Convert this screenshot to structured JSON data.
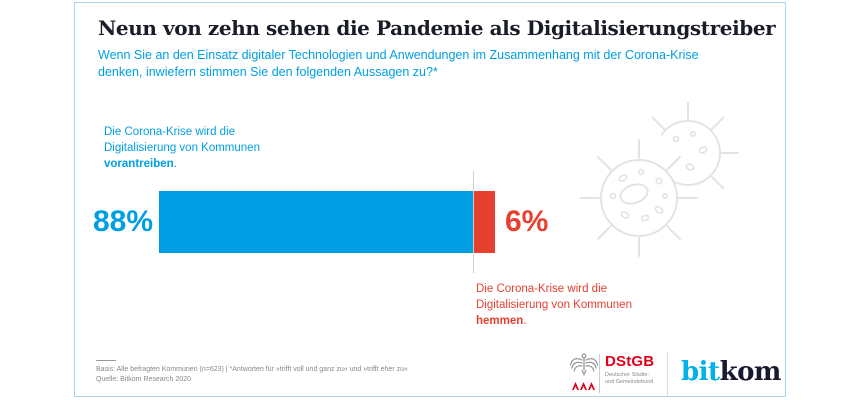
{
  "header": {
    "title": "Neun von zehn sehen die Pandemie als Digitalisierungstreiber",
    "subtitle_line1": "Wenn Sie an den Einsatz digitaler Technologien und Anwendungen im Zusammenhang mit der Corona-Krise",
    "subtitle_line2": "denken, inwiefern stimmen Sie den folgenden Aussagen zu?*"
  },
  "chart_data": {
    "type": "bar",
    "orientation": "horizontal-stacked",
    "title": "Neun von zehn sehen die Pandemie als Digitalisierungstreiber",
    "question": "Wenn Sie an den Einsatz digitaler Technologien und Anwendungen im Zusammenhang mit der Corona-Krise denken, inwiefern stimmen Sie den folgenden Aussagen zu?*",
    "unit": "%",
    "categories": [
      "Die Corona-Krise wird die Digitalisierung von Kommunen vorantreiben.",
      "Die Corona-Krise wird die Digitalisierung von Kommunen hemmen."
    ],
    "series": [
      {
        "name": "vorantreiben",
        "value": 88,
        "display": "88%",
        "color": "#009fe3"
      },
      {
        "name": "hemmen",
        "value": 6,
        "display": "6%",
        "color": "#e8402f"
      }
    ],
    "basis": "Alle befragten Kommunen (n=623)",
    "source": "Bitkom Research 2020",
    "legend_position": "none",
    "grid": false
  },
  "labels": {
    "positive": {
      "line1": "Die Corona-Krise wird die",
      "line2": "Digitalisierung von Kommunen",
      "bold": "vorantreiben",
      "suffix": "."
    },
    "negative": {
      "line1": "Die Corona-Krise wird die",
      "line2": "Digitalisierung von Kommunen",
      "bold": "hemmen",
      "suffix": "."
    }
  },
  "footer": {
    "line1": "Basis: Alle befragten Kommunen (n=623) | *Antworten für »trifft voll und ganz zu« und »trifft eher zu«",
    "line2": "Quelle: Bitkom Research 2020"
  },
  "logos": {
    "dstgb": {
      "name": "DStGB",
      "subline1": "Deutscher Städte-",
      "subline2": "und Gemeindebund"
    },
    "bitkom": {
      "part1": "bit",
      "part2": "kom"
    }
  },
  "colors": {
    "accent_blue": "#009fe3",
    "accent_red": "#e8402f",
    "title_dark": "#1a1c28",
    "card_border": "#aad4f0",
    "virus_gray": "#e3e3e3",
    "footnote_gray": "#85898d",
    "dstgb_red": "#e2001a",
    "bitkom_cyan": "#00b2e8",
    "bitkom_dark": "#181b2e"
  }
}
